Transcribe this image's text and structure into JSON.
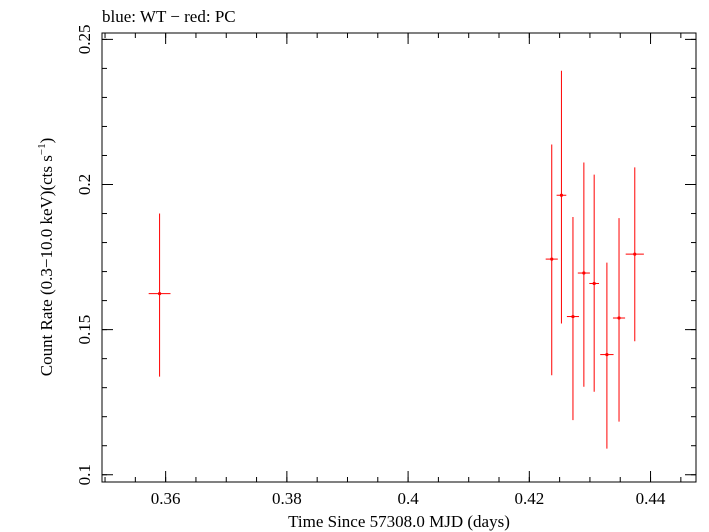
{
  "chart_data": {
    "type": "scatter",
    "title": "blue: WT − red: PC",
    "xlabel": "Time Since 57308.0 MJD (days)",
    "ylabel": "Count Rate (0.3−10.0 keV)(cts s",
    "ylabel_sup": "−1",
    "ylabel_end": ")",
    "xlim": [
      0.3495,
      0.4475
    ],
    "ylim": [
      0.0975,
      0.2522
    ],
    "xticks": [
      0.36,
      0.38,
      0.4,
      0.42,
      0.44
    ],
    "xtick_labels": [
      "0.36",
      "0.38",
      "0.4",
      "0.42",
      "0.44"
    ],
    "yticks": [
      0.1,
      0.15,
      0.2,
      0.25
    ],
    "ytick_labels": [
      "0.1",
      "0.15",
      "0.2",
      "0.25"
    ],
    "x_minor_step": 0.005,
    "y_minor_step": 0.01,
    "grid": false,
    "series": [
      {
        "name": "PC",
        "color": "#ff0000",
        "points": [
          {
            "x": 0.359,
            "y": 0.1624,
            "xerr": 0.0018,
            "ylow": 0.1338,
            "yhigh": 0.19
          },
          {
            "x": 0.4237,
            "y": 0.1743,
            "xerr": 0.001,
            "ylow": 0.1343,
            "yhigh": 0.2138
          },
          {
            "x": 0.4253,
            "y": 0.1963,
            "xerr": 0.0008,
            "ylow": 0.1521,
            "yhigh": 0.2392
          },
          {
            "x": 0.4272,
            "y": 0.1545,
            "xerr": 0.001,
            "ylow": 0.1188,
            "yhigh": 0.1888
          },
          {
            "x": 0.429,
            "y": 0.1695,
            "xerr": 0.001,
            "ylow": 0.1303,
            "yhigh": 0.2076
          },
          {
            "x": 0.4307,
            "y": 0.1659,
            "xerr": 0.0008,
            "ylow": 0.1286,
            "yhigh": 0.2034
          },
          {
            "x": 0.4328,
            "y": 0.1414,
            "xerr": 0.0011,
            "ylow": 0.109,
            "yhigh": 0.1731
          },
          {
            "x": 0.4348,
            "y": 0.154,
            "xerr": 0.001,
            "ylow": 0.1183,
            "yhigh": 0.1884
          },
          {
            "x": 0.4374,
            "y": 0.176,
            "xerr": 0.0015,
            "ylow": 0.146,
            "yhigh": 0.2059
          }
        ]
      }
    ]
  }
}
